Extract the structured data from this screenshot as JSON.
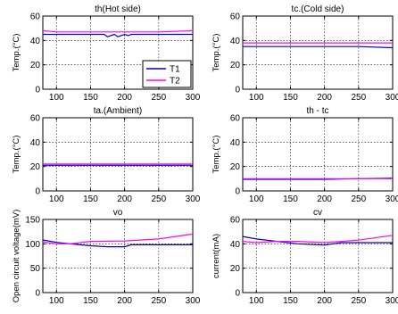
{
  "figure": {
    "colors": {
      "T1": "#0000cc",
      "T2": "#ff00ff"
    }
  },
  "chart_data": [
    {
      "type": "line",
      "title": "th(Hot side)",
      "xlabel": "",
      "ylabel": "Temp.(°C)",
      "xlim": [
        80,
        300
      ],
      "ylim": [
        0,
        60
      ],
      "xticks": [
        "100",
        "150",
        "200",
        "250",
        "300"
      ],
      "yticks": [
        "0",
        "20",
        "40",
        "60"
      ],
      "grid": true,
      "legend": {
        "placement": "bottom-right",
        "entries": [
          "T1",
          "T2"
        ]
      },
      "series": [
        {
          "name": "T1",
          "x": [
            80,
            100,
            150,
            170,
            175,
            185,
            190,
            200,
            205,
            210,
            250,
            300
          ],
          "values": [
            45,
            45,
            45,
            45,
            43,
            45,
            43,
            45,
            44,
            45,
            45,
            45
          ]
        },
        {
          "name": "T2",
          "x": [
            80,
            100,
            150,
            200,
            250,
            300
          ],
          "values": [
            48,
            47,
            47,
            47,
            47,
            48
          ]
        }
      ]
    },
    {
      "type": "line",
      "title": "tc.(Cold side)",
      "xlabel": "",
      "ylabel": "Temp.(°C)",
      "xlim": [
        80,
        300
      ],
      "ylim": [
        0,
        60
      ],
      "xticks": [
        "100",
        "150",
        "200",
        "250",
        "300"
      ],
      "yticks": [
        "0",
        "20",
        "40",
        "60"
      ],
      "grid": true,
      "series": [
        {
          "name": "T1",
          "x": [
            80,
            100,
            150,
            200,
            250,
            300
          ],
          "values": [
            35,
            35,
            35,
            35,
            35,
            34
          ]
        },
        {
          "name": "T2",
          "x": [
            80,
            100,
            150,
            200,
            250,
            300
          ],
          "values": [
            38,
            38,
            38,
            38,
            38,
            38
          ]
        }
      ]
    },
    {
      "type": "line",
      "title": "ta.(Ambient)",
      "xlabel": "",
      "ylabel": "Temp.(°C)",
      "xlim": [
        80,
        300
      ],
      "ylim": [
        0,
        60
      ],
      "xticks": [
        "100",
        "150",
        "200",
        "250",
        "300"
      ],
      "yticks": [
        "0",
        "20",
        "40",
        "60"
      ],
      "grid": true,
      "series": [
        {
          "name": "T1",
          "x": [
            80,
            100,
            150,
            200,
            250,
            300
          ],
          "values": [
            21,
            21,
            21,
            21,
            21,
            21
          ]
        },
        {
          "name": "T2",
          "x": [
            80,
            100,
            150,
            200,
            250,
            300
          ],
          "values": [
            22,
            22,
            22,
            22,
            22,
            22
          ]
        }
      ]
    },
    {
      "type": "line",
      "title": "th - tc",
      "xlabel": "",
      "ylabel": "Temp.(°C)",
      "xlim": [
        80,
        300
      ],
      "ylim": [
        0,
        60
      ],
      "xticks": [
        "100",
        "150",
        "200",
        "250",
        "300"
      ],
      "yticks": [
        "0",
        "20",
        "40",
        "60"
      ],
      "grid": true,
      "series": [
        {
          "name": "T1",
          "x": [
            80,
            100,
            150,
            200,
            250,
            300
          ],
          "values": [
            9.5,
            9.5,
            9.5,
            9.5,
            10,
            10.5
          ]
        },
        {
          "name": "T2",
          "x": [
            80,
            100,
            150,
            200,
            250,
            300
          ],
          "values": [
            10,
            10,
            10,
            10,
            10,
            10
          ]
        }
      ]
    },
    {
      "type": "line",
      "title": "vo",
      "xlabel": "",
      "ylabel": "Open circuit voltage(mV)",
      "xlim": [
        80,
        300
      ],
      "ylim": [
        0,
        150
      ],
      "xticks": [
        "100",
        "150",
        "200",
        "250",
        "300"
      ],
      "yticks": [
        "0",
        "50",
        "100",
        "150"
      ],
      "grid": true,
      "series": [
        {
          "name": "T1",
          "x": [
            80,
            100,
            120,
            150,
            175,
            200,
            210,
            250,
            300
          ],
          "values": [
            108,
            103,
            100,
            96,
            94,
            94,
            98,
            98,
            98
          ]
        },
        {
          "name": "T2",
          "x": [
            80,
            100,
            120,
            150,
            200,
            250,
            300
          ],
          "values": [
            104,
            100,
            100,
            105,
            106,
            110,
            120
          ]
        }
      ]
    },
    {
      "type": "line",
      "title": "cv",
      "xlabel": "",
      "ylabel": "current(mA)",
      "xlim": [
        80,
        300
      ],
      "ylim": [
        0,
        60
      ],
      "xticks": [
        "100",
        "150",
        "200",
        "250",
        "300"
      ],
      "yticks": [
        "0",
        "20",
        "40",
        "60"
      ],
      "grid": true,
      "series": [
        {
          "name": "T1",
          "x": [
            80,
            100,
            130,
            160,
            200,
            225,
            250,
            300
          ],
          "values": [
            46,
            44,
            42,
            40,
            39,
            41,
            41,
            41
          ]
        },
        {
          "name": "T2",
          "x": [
            80,
            100,
            130,
            160,
            200,
            250,
            300
          ],
          "values": [
            42,
            41,
            42,
            42,
            41,
            43,
            47
          ]
        }
      ]
    }
  ]
}
